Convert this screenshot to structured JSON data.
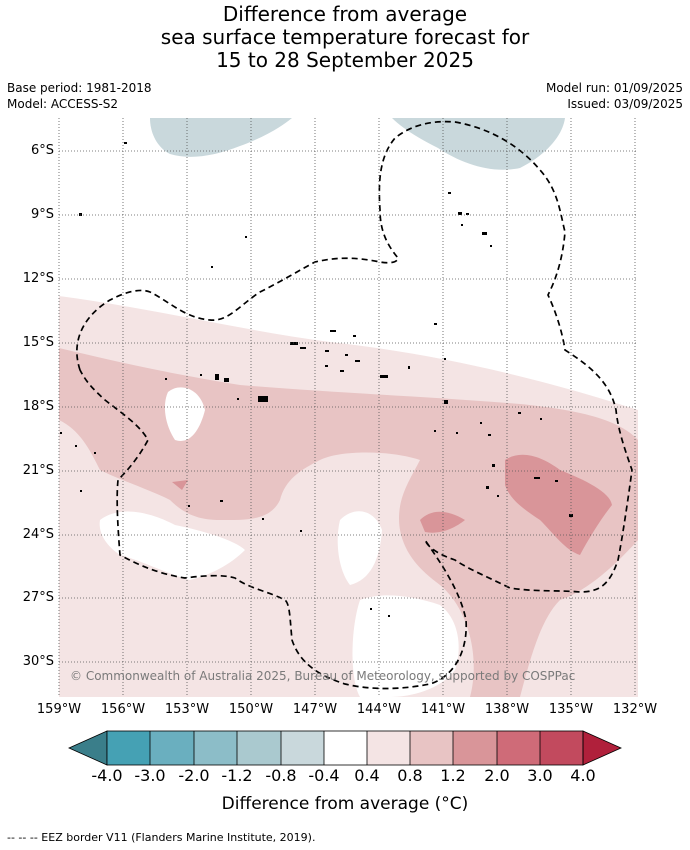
{
  "title": {
    "line1": "Difference from average",
    "line2": "sea surface temperature forecast for",
    "line3": "15 to 28 September 2025"
  },
  "base_period": "Base period: 1981-2018",
  "model": "Model: ACCESS-S2",
  "model_run": "Model run: 01/09/2025",
  "issued": "Issued: 03/09/2025",
  "lat_ticks": [
    "6°S",
    "9°S",
    "12°S",
    "15°S",
    "18°S",
    "21°S",
    "24°S",
    "27°S",
    "30°S"
  ],
  "lon_ticks": [
    "159°W",
    "156°W",
    "153°W",
    "150°W",
    "147°W",
    "144°W",
    "141°W",
    "138°W",
    "135°W",
    "132°W"
  ],
  "copyright": "© Commonwealth of Australia 2025, Bureau of Meteorology, supported by COSPPac",
  "colorbar": {
    "ticks": [
      "-4.0",
      "-3.0",
      "-2.0",
      "-1.2",
      "-0.8",
      "-0.4",
      "0.4",
      "0.8",
      "1.2",
      "2.0",
      "3.0",
      "4.0"
    ],
    "colors": [
      "#45a1b4",
      "#6aafbf",
      "#8cbdc8",
      "#aac9cf",
      "#c9d8dc",
      "#ffffff",
      "#f4e4e4",
      "#e8c4c4",
      "#d99599",
      "#cf6b78",
      "#c24a5e"
    ],
    "under_color": "#3a7e8a",
    "over_color": "#b0203b",
    "label": "Difference from average ($^\\circ$C)",
    "label_display": "Difference from average (°C)"
  },
  "legend_note": "--  --  -- EEZ border V11 (Flanders Marine Institute, 2019)."
}
